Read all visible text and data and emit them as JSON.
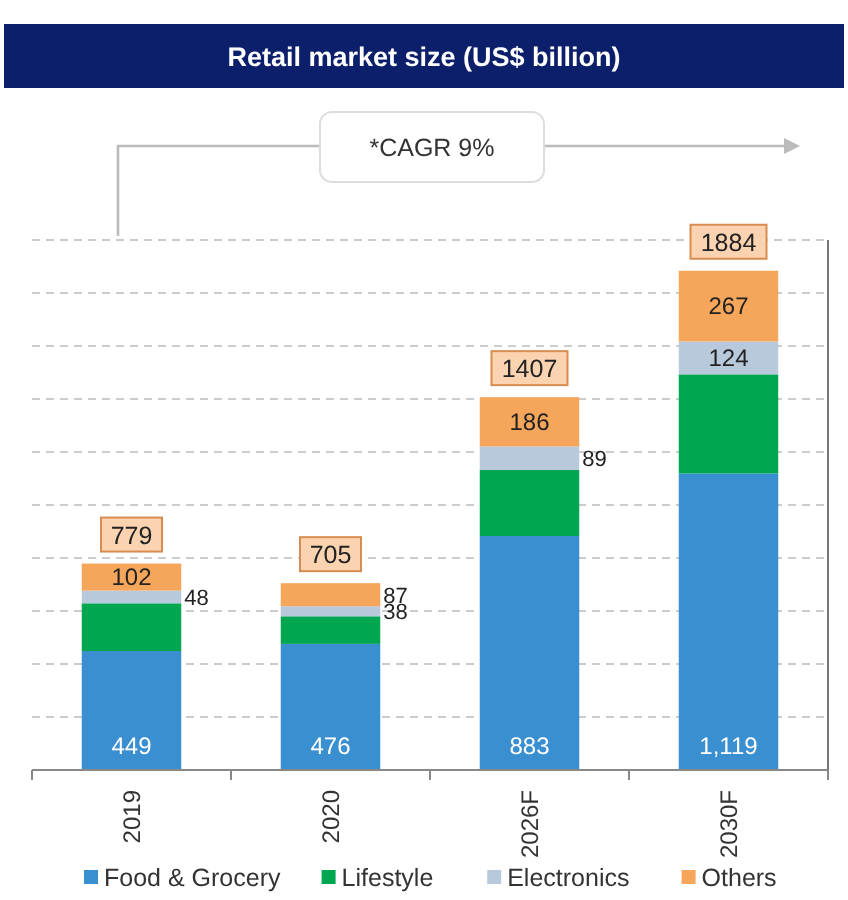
{
  "chart_data": {
    "type": "bar",
    "title": "Retail market size (US$ billion)",
    "categories": [
      "2019",
      "2020",
      "2026F",
      "2030F"
    ],
    "stacked": true,
    "series": [
      {
        "name": "Food & Grocery",
        "color": "#3a8fd0",
        "values": [
          449,
          476,
          883,
          1119
        ],
        "value_labels": [
          "449",
          "476",
          "883",
          "1,119"
        ]
      },
      {
        "name": "Lifestyle",
        "color": "#00a650",
        "values": [
          180,
          104,
          249,
          374
        ]
      },
      {
        "name": "Electronics",
        "color": "#b9c9dc",
        "values": [
          48,
          38,
          89,
          124
        ],
        "value_labels": [
          "48",
          "38",
          "89",
          "124"
        ]
      },
      {
        "name": "Others",
        "color": "#f5a65b",
        "values": [
          102,
          87,
          186,
          267
        ],
        "value_labels": [
          "102",
          "87",
          "186",
          "267"
        ]
      }
    ],
    "totals": [
      "779",
      "705",
      "1407",
      "1884"
    ],
    "annotations": [
      "*CAGR 9%"
    ],
    "ylim": [
      0,
      2000
    ],
    "yticks": [
      {
        "value": 200,
        "label": null
      },
      {
        "value": 400,
        "label": null
      },
      {
        "value": 600,
        "label": null
      },
      {
        "value": 800,
        "label": null
      },
      {
        "value": 1000,
        "label": null
      },
      {
        "value": 1200,
        "label": null
      },
      {
        "value": 1400,
        "label": null
      },
      {
        "value": 1600,
        "label": null
      },
      {
        "value": 1800,
        "label": null
      },
      {
        "value": 2000,
        "label": null
      }
    ],
    "tick_labels": "x",
    "grid": "y",
    "legend": "bottom"
  }
}
